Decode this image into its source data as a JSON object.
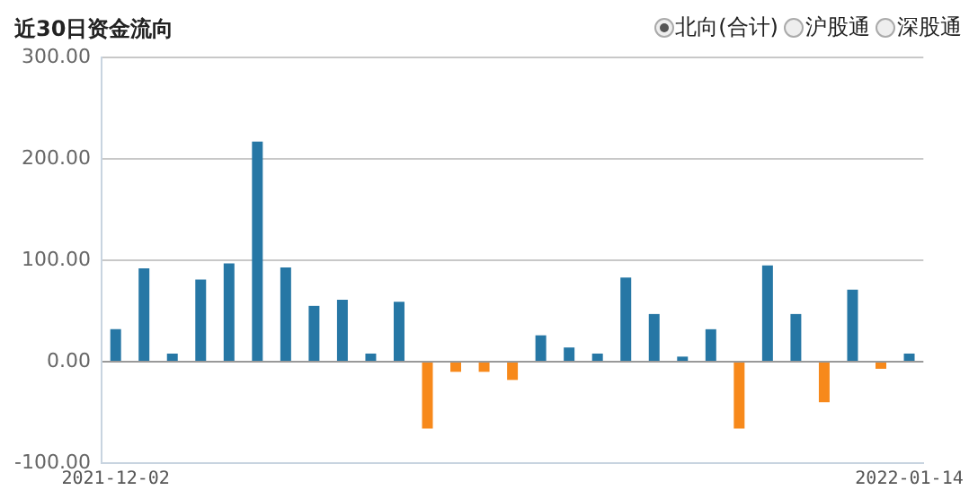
{
  "chart_data": {
    "type": "bar",
    "title": "近30日资金流向",
    "annotations": [
      "北向(合计)",
      "沪股通",
      "深股通"
    ],
    "categories": [
      "2021-12-02",
      null,
      null,
      null,
      null,
      null,
      null,
      null,
      null,
      null,
      null,
      null,
      null,
      null,
      null,
      null,
      null,
      null,
      null,
      null,
      null,
      null,
      null,
      null,
      null,
      null,
      null,
      null,
      "2022-01-14"
    ],
    "values": [
      32,
      92,
      8,
      81,
      97,
      217,
      93,
      55,
      61,
      8,
      59,
      -66,
      -10,
      -10,
      -18,
      26,
      14,
      8,
      83,
      47,
      5,
      32,
      -66,
      95,
      47,
      -40,
      71,
      -7,
      8
    ],
    "colors": [
      "#2677a5",
      "#2677a5",
      "#2677a5",
      "#2677a5",
      "#2677a5",
      "#2677a5",
      "#2677a5",
      "#2677a5",
      "#2677a5",
      "#2677a5",
      "#2677a5",
      "#f7891b",
      "#f7891b",
      "#f7891b",
      "#f7891b",
      "#2677a5",
      "#2677a5",
      "#2677a5",
      "#2677a5",
      "#2677a5",
      "#2677a5",
      "#2677a5",
      "#f7891b",
      "#2677a5",
      "#2677a5",
      "#f7891b",
      "#2677a5",
      "#f7891b",
      "#2677a5"
    ],
    "ylim": [
      -100,
      300
    ],
    "yticks": [
      {
        "value": -100,
        "label": "-100.00"
      },
      {
        "value": 0,
        "label": "0.00"
      },
      {
        "value": 100,
        "label": "100.00"
      },
      {
        "value": 200,
        "label": "200.00"
      },
      {
        "value": 300,
        "label": "300.00"
      }
    ],
    "grid": "y",
    "legend": false
  }
}
